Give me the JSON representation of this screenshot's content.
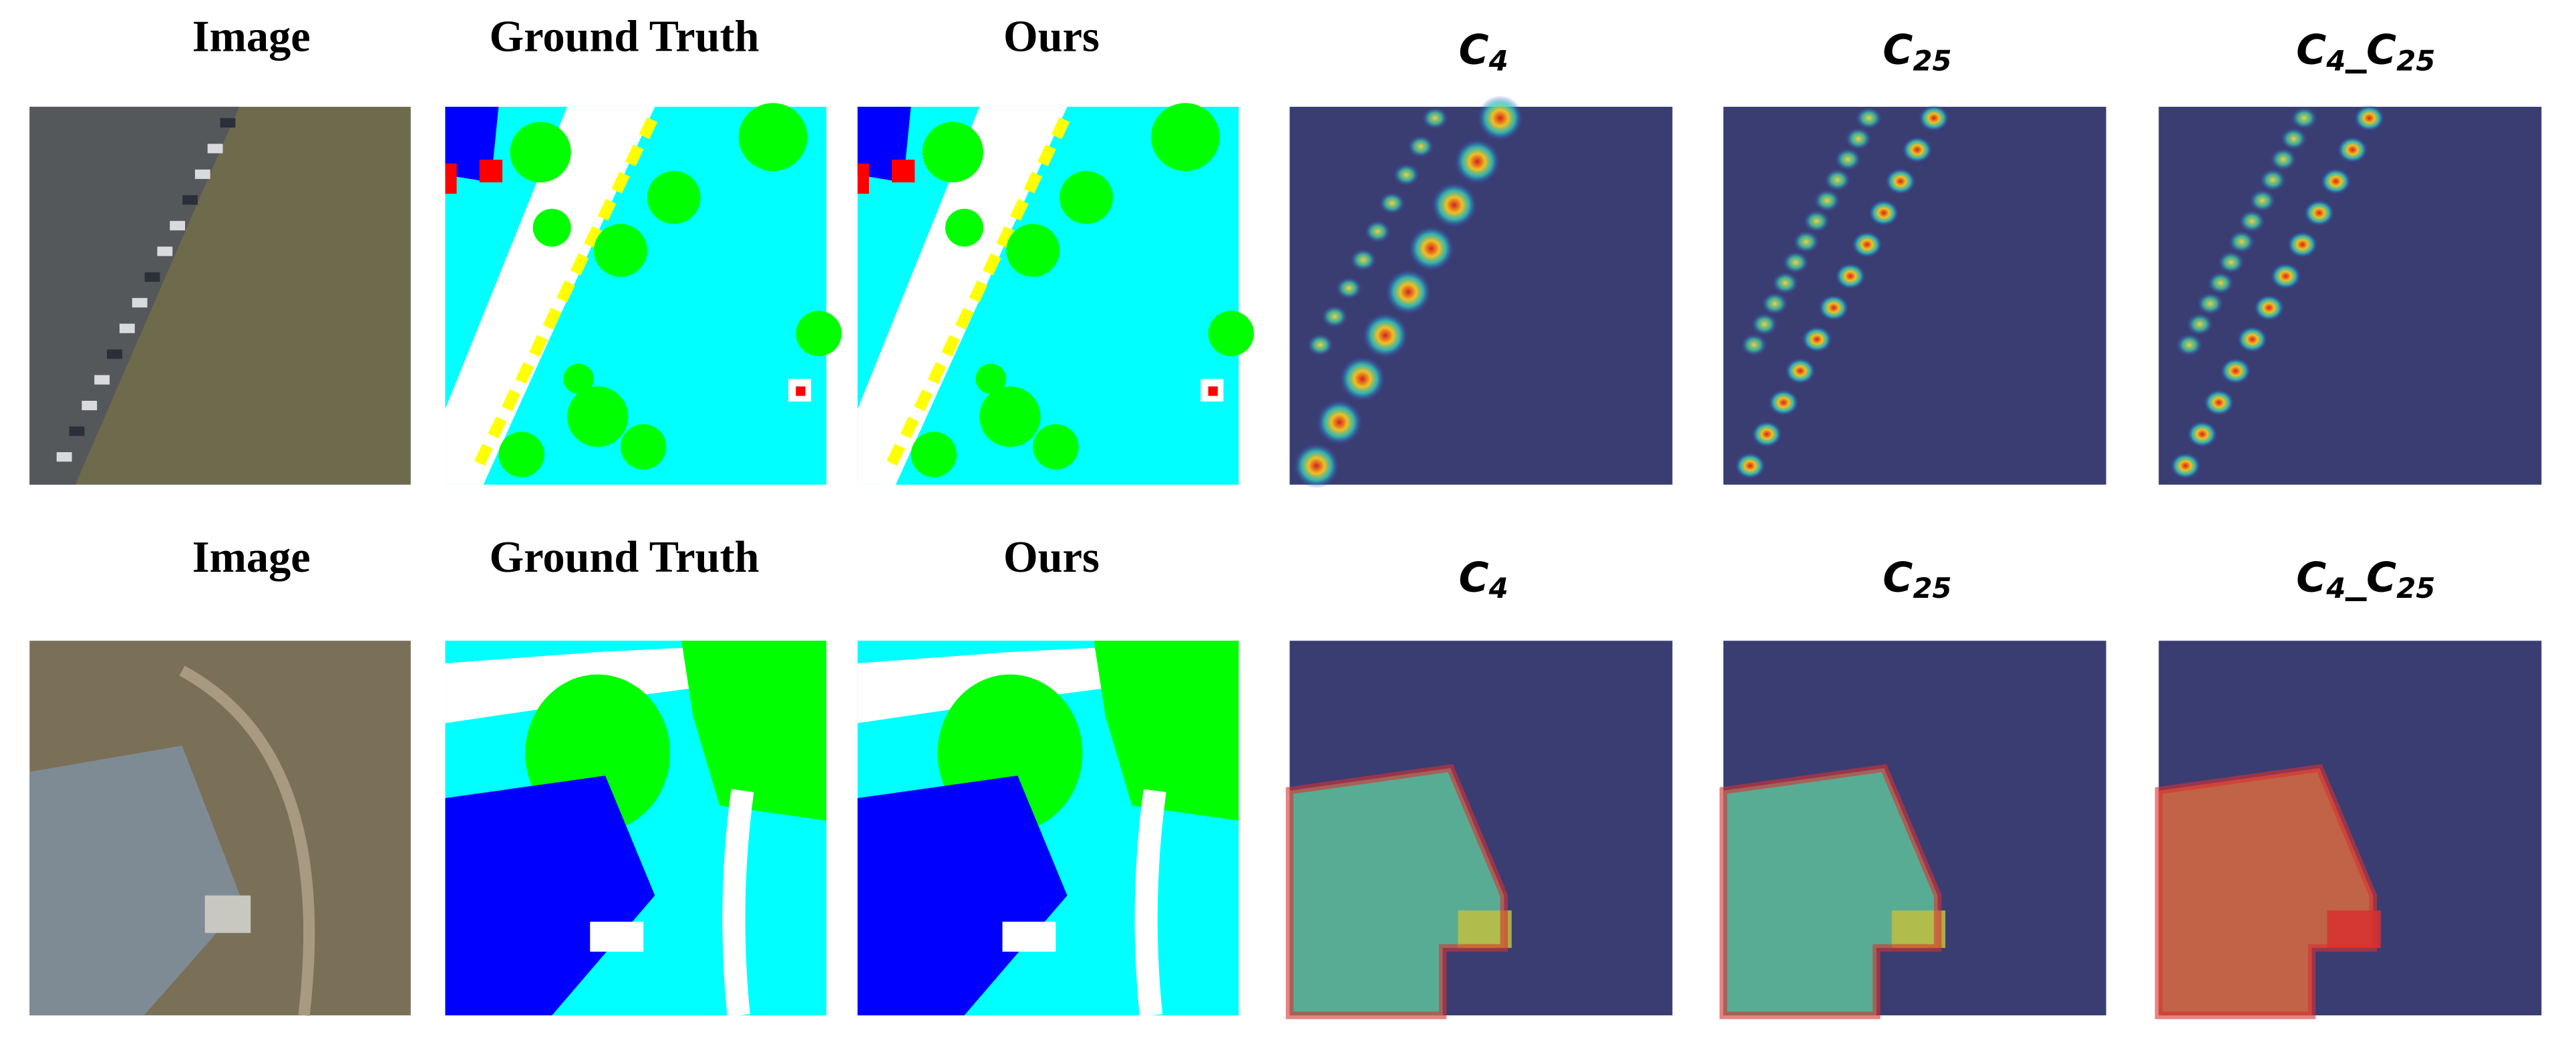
{
  "rows": [
    {
      "columns": [
        {
          "segments": [
            {
              "text": "Image"
            }
          ]
        },
        {
          "segments": [
            {
              "text": "Ground Truth"
            }
          ]
        },
        {
          "segments": [
            {
              "text": "Ours"
            }
          ]
        },
        {
          "segments": [
            {
              "text": "C"
            },
            {
              "text": "4",
              "subscript": true
            }
          ]
        },
        {
          "segments": [
            {
              "text": "C"
            },
            {
              "text": "25",
              "subscript": true
            }
          ]
        },
        {
          "segments": [
            {
              "text": "C"
            },
            {
              "text": "4",
              "subscript": true
            },
            {
              "text": "_"
            },
            {
              "text": "C"
            },
            {
              "text": "25",
              "subscript": true
            }
          ]
        }
      ]
    },
    {
      "columns": [
        {
          "segments": [
            {
              "text": "Image"
            }
          ]
        },
        {
          "segments": [
            {
              "text": "Ground Truth"
            }
          ]
        },
        {
          "segments": [
            {
              "text": "Ours"
            }
          ]
        },
        {
          "segments": [
            {
              "text": "C"
            },
            {
              "text": "4",
              "subscript": true
            }
          ]
        },
        {
          "segments": [
            {
              "text": "C"
            },
            {
              "text": "25",
              "subscript": true
            }
          ]
        },
        {
          "segments": [
            {
              "text": "C"
            },
            {
              "text": "4",
              "subscript": true
            },
            {
              "text": "_"
            },
            {
              "text": "C"
            },
            {
              "text": "25",
              "subscript": true
            }
          ]
        }
      ]
    }
  ]
}
